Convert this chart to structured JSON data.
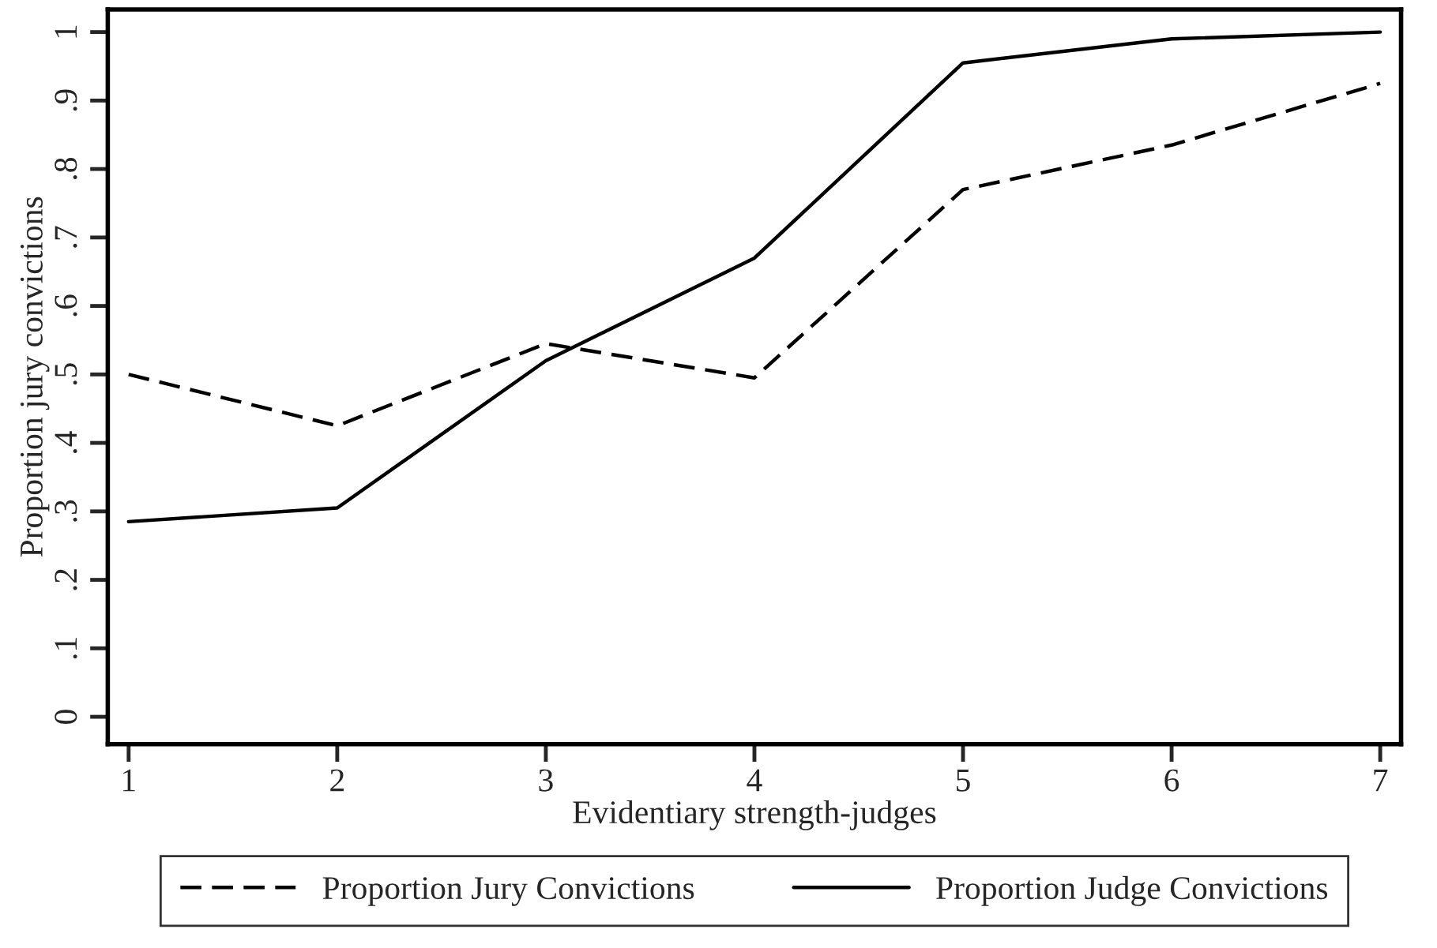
{
  "chart_data": {
    "type": "line",
    "xlabel": "Evidentiary strength-judges",
    "ylabel": "Proportion jury convictions",
    "x": [
      1,
      2,
      3,
      4,
      5,
      6,
      7
    ],
    "series": [
      {
        "name": "Proportion Jury Convictions",
        "color": "#000000",
        "line_style": "dashed",
        "values": [
          0.5,
          0.425,
          0.545,
          0.495,
          0.77,
          0.835,
          0.925
        ]
      },
      {
        "name": "Proportion Judge Convictions",
        "color": "#000000",
        "line_style": "solid",
        "values": [
          0.285,
          0.305,
          0.52,
          0.67,
          0.955,
          0.99,
          1.0
        ]
      }
    ],
    "xlim": [
      0.9,
      7.1
    ],
    "ylim": [
      -0.04,
      1.033
    ],
    "xticks": [
      1,
      2,
      3,
      4,
      5,
      6,
      7
    ],
    "yticks": [
      {
        "value": 0,
        "label": "0"
      },
      {
        "value": 0.1,
        "label": ".1"
      },
      {
        "value": 0.2,
        "label": ".2"
      },
      {
        "value": 0.3,
        "label": ".3"
      },
      {
        "value": 0.4,
        "label": ".4"
      },
      {
        "value": 0.5,
        "label": ".5"
      },
      {
        "value": 0.6,
        "label": ".6"
      },
      {
        "value": 0.7,
        "label": ".7"
      },
      {
        "value": 0.8,
        "label": ".8"
      },
      {
        "value": 0.9,
        "label": ".9"
      },
      {
        "value": 1,
        "label": "1"
      }
    ],
    "grid": false,
    "legend": "bottom",
    "marker": "none"
  }
}
